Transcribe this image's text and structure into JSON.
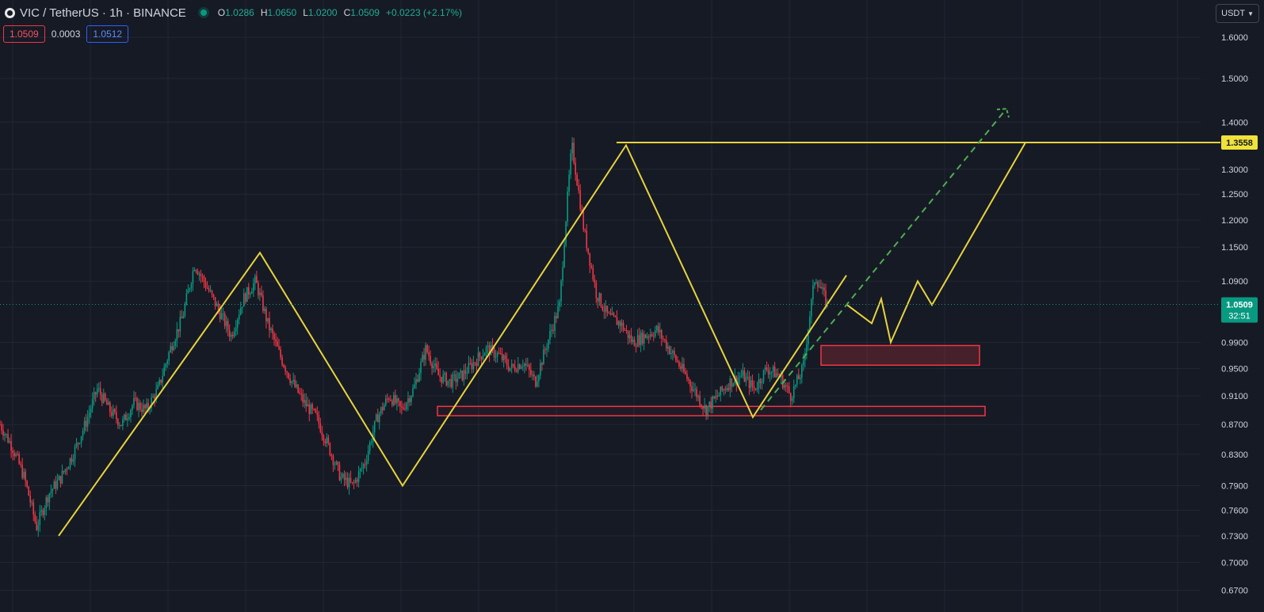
{
  "header": {
    "symbol": "VIC",
    "title": "VIC / TetherUS · 1h · BINANCE",
    "open_label": "O",
    "open": "1.0286",
    "high_label": "H",
    "high": "1.0650",
    "low_label": "L",
    "low": "1.0200",
    "close_label": "C",
    "close": "1.0509",
    "change": "+0.0223 (+2.17%)"
  },
  "quote": {
    "bid": "1.0509",
    "spread": "0.0003",
    "ask": "1.0512"
  },
  "currency_selector": {
    "label": "USDT"
  },
  "colors": {
    "background": "#161a25",
    "grid": "#232733",
    "up": "#089981",
    "down": "#f23645",
    "pattern": "#e7d33e",
    "zone": "#f23645",
    "projection": "#4caf50",
    "text": "#d1d4dc"
  },
  "chart_data": {
    "type": "candlestick",
    "scale": "log",
    "ylim": [
      0.65,
      1.68
    ],
    "y_ticks": [
      "1.6000",
      "1.5000",
      "1.4000",
      "1.3000",
      "1.2500",
      "1.2000",
      "1.1500",
      "1.0900",
      "0.9900",
      "0.9500",
      "0.9100",
      "0.8700",
      "0.8300",
      "0.7900",
      "0.7600",
      "0.7300",
      "0.7000",
      "0.6700"
    ],
    "current_price": {
      "value": 1.0509,
      "label": "1.0509",
      "countdown": "32:51"
    },
    "resistance": {
      "value": 1.3558,
      "label": "1.3558"
    },
    "price_path": [
      0.87,
      0.84,
      0.8,
      0.74,
      0.78,
      0.8,
      0.83,
      0.87,
      0.92,
      0.89,
      0.87,
      0.9,
      0.89,
      0.92,
      0.98,
      1.03,
      1.12,
      1.08,
      1.04,
      1.0,
      1.06,
      1.09,
      1.02,
      0.97,
      0.93,
      0.9,
      0.88,
      0.84,
      0.8,
      0.79,
      0.82,
      0.88,
      0.91,
      0.89,
      0.92,
      0.98,
      0.94,
      0.93,
      0.94,
      0.96,
      0.98,
      0.97,
      0.95,
      0.96,
      0.93,
      0.99,
      1.05,
      1.35,
      1.18,
      1.07,
      1.03,
      1.02,
      0.99,
      1.0,
      1.01,
      0.98,
      0.95,
      0.92,
      0.89,
      0.91,
      0.93,
      0.94,
      0.92,
      0.95,
      0.94,
      0.91,
      0.95,
      1.1,
      1.0509
    ],
    "zigzag": [
      [
        0.73,
        0.0
      ],
      [
        1.14,
        0.2
      ],
      [
        0.79,
        0.4
      ],
      [
        1.35,
        0.6
      ],
      [
        0.88,
        0.8
      ],
      [
        1.1,
        1.0
      ]
    ],
    "projection_path": [
      1.0509,
      1.02,
      1.06,
      0.99,
      1.09,
      1.05,
      1.3558
    ],
    "zones": [
      {
        "name": "support-zone",
        "low": 0.882,
        "high": 0.895
      },
      {
        "name": "demand-zone",
        "low": 0.955,
        "high": 0.985
      }
    ]
  }
}
